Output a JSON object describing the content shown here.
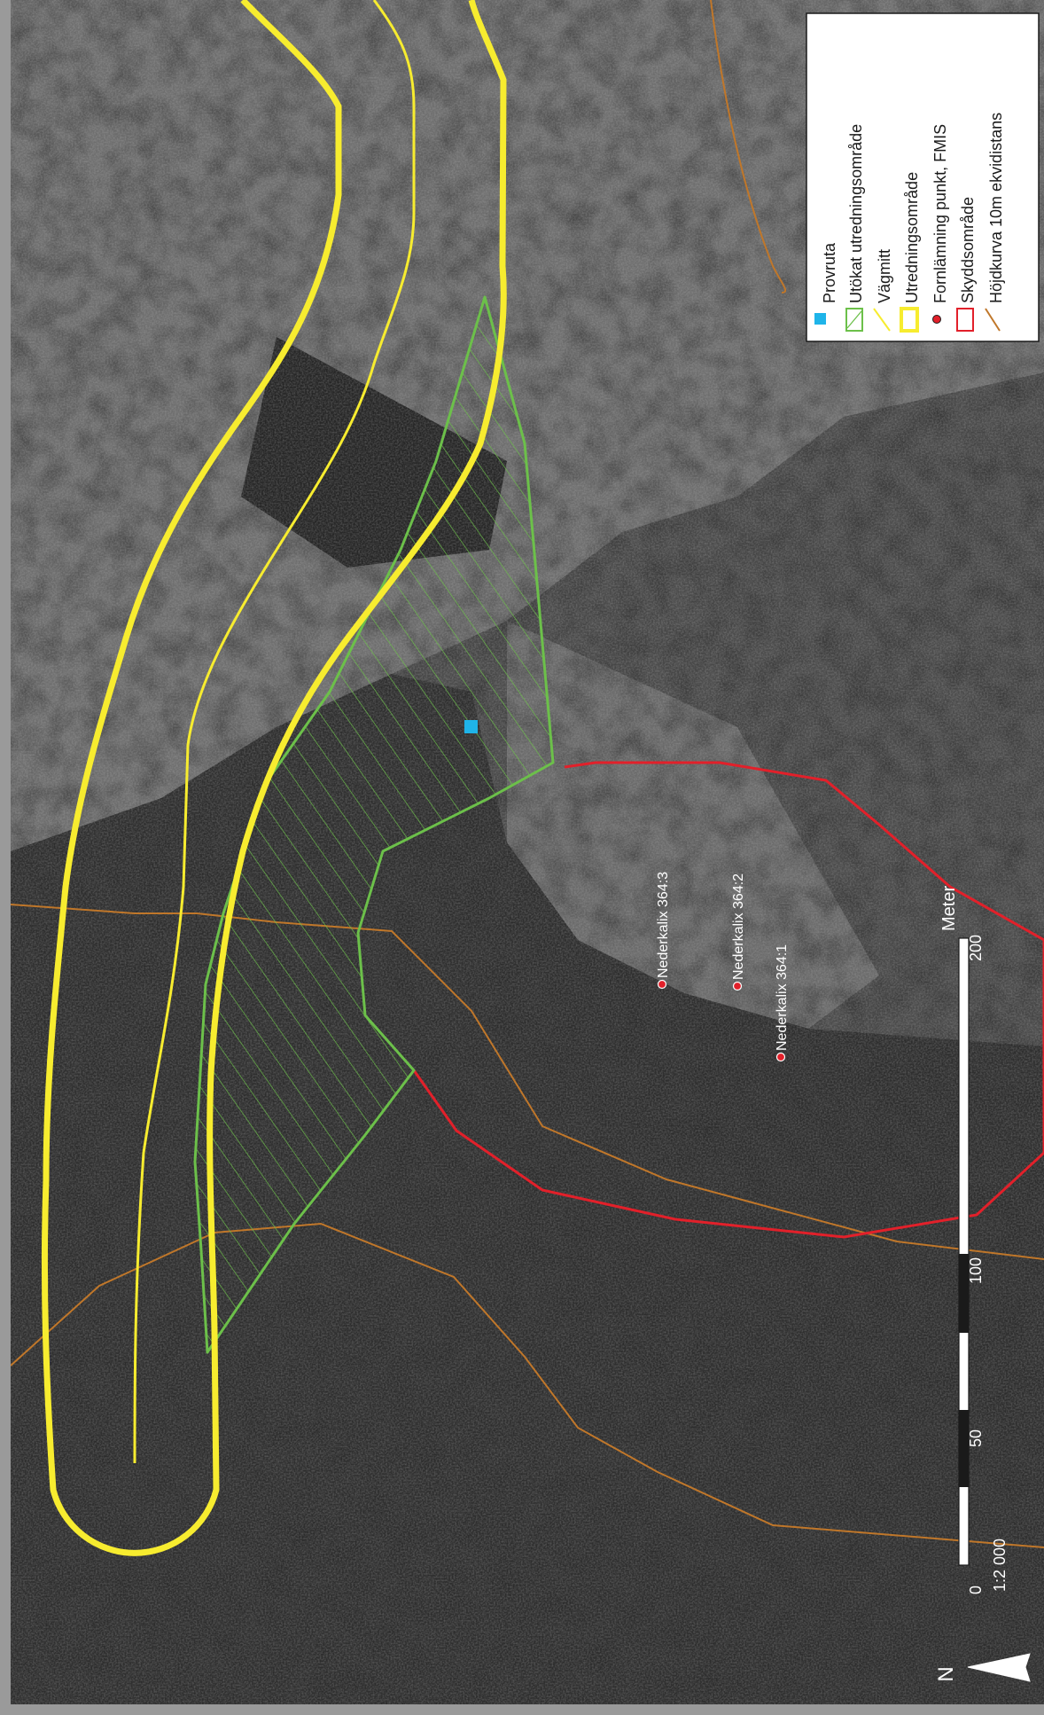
{
  "legend": {
    "items": [
      {
        "symbol": "square",
        "color": "#1fb4e9",
        "label": "Provruta"
      },
      {
        "symbol": "hatched-polygon",
        "color": "#6cc04a",
        "label": "Utökat utredningsområde"
      },
      {
        "symbol": "thin-line",
        "color": "#f7ec2f",
        "label": "Vägmitt"
      },
      {
        "symbol": "thick-outline",
        "color": "#f7ec2f",
        "label": "Utredningsområde"
      },
      {
        "symbol": "dot",
        "color": "#e2202a",
        "label": "Fornlämning punkt, FMIS"
      },
      {
        "symbol": "outline",
        "color": "#e2202a",
        "label": "Skyddsområde"
      },
      {
        "symbol": "line",
        "color": "#c0772a",
        "label": "Höjdkurva 10m ekvidistans"
      }
    ]
  },
  "sites": [
    {
      "label": "Nederkalix 364:3"
    },
    {
      "label": "Nederkalix 364:2"
    },
    {
      "label": "Nederkalix 364:1"
    }
  ],
  "scale_bar": {
    "unit": "Meter",
    "ticks": [
      "0",
      "50",
      "100",
      "200"
    ],
    "ratio": "1:2 000"
  },
  "north_arrow": {
    "label": "N"
  },
  "colors": {
    "road_area": "#f7ec2f",
    "extended_area": "#6cc04a",
    "protection_zone": "#e2202a",
    "contour": "#c0772a",
    "sample_square": "#1fb4e9"
  }
}
